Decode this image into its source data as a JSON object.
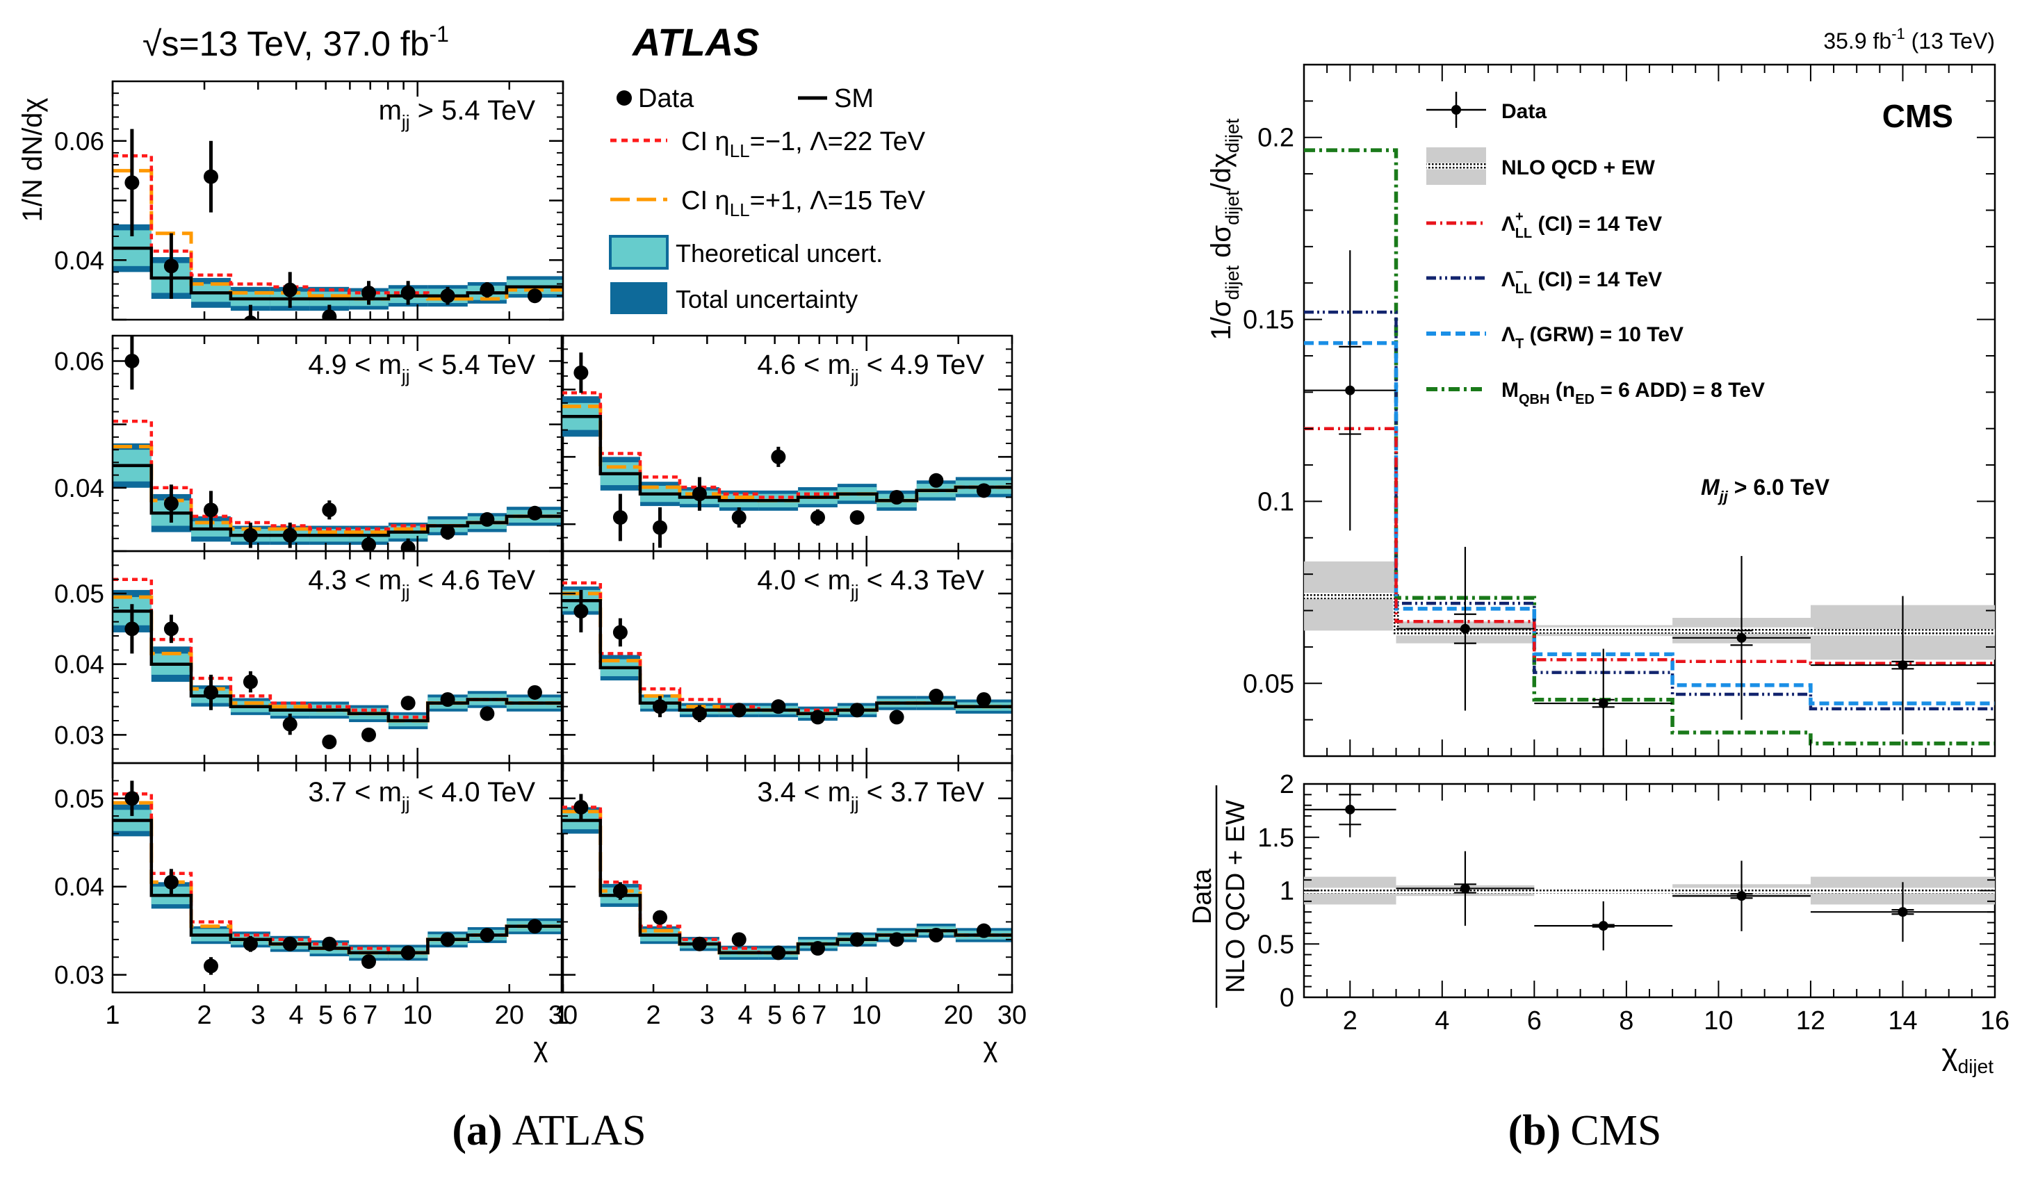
{
  "figure": {
    "caption_a_letter": "(a)",
    "caption_a_text": "ATLAS",
    "caption_b_letter": "(b)",
    "caption_b_text": "CMS"
  },
  "atlas": {
    "header": "√s=13 TeV, 37.0 fb",
    "header_sup": "-1",
    "brand": "ATLAS",
    "ylabel": "1/N dN/dχ",
    "xlabel": "χ",
    "legend": {
      "data": "Data",
      "sm": "SM",
      "ci_neg": "CI η",
      "ci_neg_sub": "LL",
      "ci_neg_rest": "=−1, Λ=22 TeV",
      "ci_pos": "CI η",
      "ci_pos_sub": "LL",
      "ci_pos_rest": "=+1, Λ=15 TeV",
      "theory": "Theoretical uncert.",
      "total": "Total uncertainty"
    },
    "colors": {
      "ci_neg": "#ff1a1a",
      "ci_pos": "#ff9900",
      "theory": "#66cccc",
      "total": "#0e6a9a",
      "sm": "#000000"
    },
    "x_ticks": [
      "1",
      "2",
      "3",
      "4",
      "5",
      "6",
      "7",
      "10",
      "20",
      "30"
    ],
    "x_tick_values": [
      1,
      2,
      3,
      4,
      5,
      6,
      7,
      10,
      20,
      30
    ],
    "bin_edges": [
      1,
      1.34,
      1.81,
      2.44,
      3.29,
      4.43,
      5.96,
      8.03,
      10.8,
      14.6,
      19.6,
      30
    ],
    "panels": [
      {
        "label_pre": "m",
        "label_sub": "jj",
        "label_post": " > 5.4 TeV",
        "ylim": [
          0.03,
          0.07
        ],
        "yticks": [
          0.04,
          0.06
        ],
        "ytick_labels": [
          "0.04",
          "0.06"
        ],
        "sm": [
          0.042,
          0.037,
          0.0345,
          0.0335,
          0.0335,
          0.0335,
          0.0335,
          0.034,
          0.034,
          0.0345,
          0.0355
        ],
        "total_half": [
          0.004,
          0.0035,
          0.0025,
          0.002,
          0.002,
          0.002,
          0.0018,
          0.0018,
          0.0018,
          0.0018,
          0.0018
        ],
        "theory_half": [
          0.003,
          0.0025,
          0.0015,
          0.0012,
          0.0012,
          0.0012,
          0.0012,
          0.0012,
          0.0012,
          0.0012,
          0.0012
        ],
        "ci_neg": [
          0.0575,
          0.0415,
          0.0375,
          0.036,
          0.0355,
          0.035,
          0.0345,
          0.0345,
          0.034,
          0.0345,
          0.0355
        ],
        "ci_pos": [
          0.055,
          0.0445,
          0.036,
          0.0345,
          0.0345,
          0.034,
          0.0335,
          0.034,
          0.0335,
          0.0335,
          0.035
        ],
        "data": [
          0.053,
          0.039,
          0.054,
          0.0295,
          0.035,
          0.0305,
          0.0345,
          0.0345,
          0.034,
          0.035,
          0.034
        ],
        "err": [
          0.009,
          0.0055,
          0.006,
          0.003,
          0.003,
          0.002,
          0.002,
          0.002,
          0.0015,
          0.0013,
          0.001
        ]
      },
      {
        "label_pre": "4.9 < m",
        "label_sub": "jj",
        "label_post": " < 5.4 TeV",
        "ylim": [
          0.03,
          0.064
        ],
        "yticks": [
          0.04,
          0.06
        ],
        "ytick_labels": [
          "0.04",
          "0.06"
        ],
        "sm": [
          0.0435,
          0.036,
          0.0335,
          0.0325,
          0.0325,
          0.0325,
          0.0325,
          0.033,
          0.034,
          0.0345,
          0.0355
        ],
        "total_half": [
          0.0035,
          0.003,
          0.002,
          0.0015,
          0.0015,
          0.0015,
          0.0015,
          0.0015,
          0.0015,
          0.0015,
          0.0015
        ],
        "theory_half": [
          0.0025,
          0.002,
          0.0012,
          0.001,
          0.001,
          0.001,
          0.001,
          0.001,
          0.001,
          0.001,
          0.001
        ],
        "ci_neg": [
          0.0505,
          0.04,
          0.0355,
          0.0345,
          0.034,
          0.0335,
          0.0335,
          0.034,
          0.034,
          0.0345,
          0.0355
        ],
        "ci_pos": [
          0.0465,
          0.038,
          0.0345,
          0.0335,
          0.0335,
          0.033,
          0.033,
          0.0335,
          0.034,
          0.0345,
          0.0355
        ],
        "data": [
          0.06,
          0.0375,
          0.0365,
          0.0325,
          0.0325,
          0.0365,
          0.031,
          0.0305,
          0.033,
          0.035,
          0.036
        ],
        "err": [
          0.0045,
          0.003,
          0.003,
          0.002,
          0.002,
          0.0015,
          0.0015,
          0.0015,
          0.0012,
          0.001,
          0.001
        ]
      },
      {
        "label_pre": "4.6 < m",
        "label_sub": "jj",
        "label_post": " < 4.9 TeV",
        "ylim": [
          0.026,
          0.058
        ],
        "yticks": [],
        "ytick_labels": [],
        "sm": [
          0.046,
          0.0375,
          0.0345,
          0.034,
          0.0335,
          0.0335,
          0.034,
          0.0345,
          0.0335,
          0.035,
          0.0355
        ],
        "total_half": [
          0.003,
          0.0025,
          0.0018,
          0.0015,
          0.0015,
          0.0015,
          0.0015,
          0.0015,
          0.0015,
          0.0015,
          0.0015
        ],
        "theory_half": [
          0.002,
          0.0017,
          0.0012,
          0.001,
          0.001,
          0.001,
          0.001,
          0.001,
          0.001,
          0.001,
          0.001
        ],
        "ci_neg": [
          0.0495,
          0.0405,
          0.037,
          0.0355,
          0.0345,
          0.034,
          0.0345,
          0.0345,
          0.0335,
          0.035,
          0.0355
        ],
        "ci_pos": [
          0.0475,
          0.0385,
          0.0355,
          0.0345,
          0.034,
          0.0335,
          0.034,
          0.0345,
          0.0335,
          0.035,
          0.0355
        ],
        "data": [
          0.0525,
          0.031,
          0.0295,
          0.0345,
          0.031,
          0.04,
          0.031,
          0.031,
          0.034,
          0.0365,
          0.035
        ],
        "err": [
          0.003,
          0.0035,
          0.003,
          0.0025,
          0.0015,
          0.0015,
          0.0012,
          0.001,
          0.001,
          0.0008,
          0.0008
        ]
      },
      {
        "label_pre": "4.3 < m",
        "label_sub": "jj",
        "label_post": " < 4.6 TeV",
        "ylim": [
          0.026,
          0.056
        ],
        "yticks": [
          0.03,
          0.04,
          0.05
        ],
        "ytick_labels": [
          "0.03",
          "0.04",
          "0.05"
        ],
        "sm": [
          0.0475,
          0.04,
          0.0355,
          0.034,
          0.0335,
          0.0335,
          0.033,
          0.032,
          0.0345,
          0.035,
          0.0345
        ],
        "total_half": [
          0.003,
          0.0025,
          0.0015,
          0.0012,
          0.0012,
          0.0012,
          0.0012,
          0.0012,
          0.0012,
          0.0012,
          0.0012
        ],
        "theory_half": [
          0.002,
          0.0015,
          0.001,
          0.0008,
          0.0008,
          0.0008,
          0.0008,
          0.0008,
          0.0008,
          0.0008,
          0.0008
        ],
        "ci_neg": [
          0.052,
          0.0435,
          0.038,
          0.0355,
          0.0345,
          0.034,
          0.0335,
          0.0325,
          0.0345,
          0.035,
          0.0345
        ],
        "ci_pos": [
          0.0495,
          0.0415,
          0.0365,
          0.0345,
          0.034,
          0.0335,
          0.033,
          0.032,
          0.0345,
          0.035,
          0.0345
        ],
        "data": [
          0.045,
          0.045,
          0.036,
          0.0375,
          0.0315,
          0.029,
          0.03,
          0.0345,
          0.035,
          0.033,
          0.036
        ],
        "err": [
          0.0035,
          0.002,
          0.0025,
          0.0015,
          0.0015,
          0.001,
          0.001,
          0.0008,
          0.0008,
          0.0006,
          0.0006
        ]
      },
      {
        "label_pre": "4.0 < m",
        "label_sub": "jj",
        "label_post": " < 4.3 TeV",
        "ylim": [
          0.026,
          0.056
        ],
        "yticks": [],
        "ytick_labels": [],
        "sm": [
          0.049,
          0.0395,
          0.0345,
          0.0335,
          0.0335,
          0.0335,
          0.033,
          0.0335,
          0.0345,
          0.0345,
          0.034
        ],
        "total_half": [
          0.002,
          0.0018,
          0.0012,
          0.001,
          0.001,
          0.001,
          0.001,
          0.001,
          0.001,
          0.001,
          0.001
        ],
        "theory_half": [
          0.0015,
          0.0012,
          0.0008,
          0.0006,
          0.0006,
          0.0006,
          0.0006,
          0.0006,
          0.0006,
          0.0006,
          0.0006
        ],
        "ci_neg": [
          0.0515,
          0.0415,
          0.0365,
          0.035,
          0.034,
          0.0335,
          0.0335,
          0.0335,
          0.0345,
          0.0345,
          0.034
        ],
        "ci_pos": [
          0.05,
          0.0405,
          0.0355,
          0.034,
          0.0335,
          0.0335,
          0.033,
          0.0335,
          0.0345,
          0.0345,
          0.034
        ],
        "data": [
          0.0475,
          0.0445,
          0.034,
          0.033,
          0.0335,
          0.034,
          0.0325,
          0.0335,
          0.0325,
          0.0355,
          0.035
        ],
        "err": [
          0.003,
          0.002,
          0.0015,
          0.0012,
          0.001,
          0.0008,
          0.0007,
          0.0006,
          0.0005,
          0.0005,
          0.0005
        ]
      },
      {
        "label_pre": "3.7 < m",
        "label_sub": "jj",
        "label_post": " < 4.0 TeV",
        "ylim": [
          0.028,
          0.054
        ],
        "yticks": [
          0.03,
          0.04,
          0.05
        ],
        "ytick_labels": [
          "0.03",
          "0.04",
          "0.05"
        ],
        "sm": [
          0.0475,
          0.039,
          0.0345,
          0.034,
          0.0335,
          0.033,
          0.0325,
          0.0325,
          0.034,
          0.0345,
          0.0355
        ],
        "total_half": [
          0.0018,
          0.0015,
          0.001,
          0.0009,
          0.0009,
          0.0009,
          0.0009,
          0.0009,
          0.0009,
          0.0009,
          0.0009
        ],
        "theory_half": [
          0.0012,
          0.001,
          0.0007,
          0.0006,
          0.0006,
          0.0006,
          0.0006,
          0.0006,
          0.0006,
          0.0006,
          0.0006
        ],
        "ci_neg": [
          0.0505,
          0.0415,
          0.036,
          0.0345,
          0.034,
          0.0335,
          0.033,
          0.0325,
          0.034,
          0.0345,
          0.0355
        ],
        "ci_pos": [
          0.0495,
          0.0405,
          0.0355,
          0.034,
          0.0335,
          0.033,
          0.0325,
          0.0325,
          0.034,
          0.0345,
          0.0355
        ],
        "data": [
          0.05,
          0.0405,
          0.031,
          0.0335,
          0.0335,
          0.0335,
          0.0315,
          0.0325,
          0.034,
          0.0345,
          0.0355
        ],
        "err": [
          0.002,
          0.0015,
          0.001,
          0.0009,
          0.0008,
          0.0007,
          0.0006,
          0.0005,
          0.0005,
          0.0004,
          0.0004
        ]
      },
      {
        "label_pre": "3.4 < m",
        "label_sub": "jj",
        "label_post": " < 3.7 TeV",
        "ylim": [
          0.028,
          0.054
        ],
        "yticks": [],
        "ytick_labels": [],
        "sm": [
          0.0475,
          0.039,
          0.0345,
          0.0335,
          0.0325,
          0.0325,
          0.0335,
          0.034,
          0.0345,
          0.035,
          0.0345
        ],
        "total_half": [
          0.0015,
          0.0013,
          0.001,
          0.0008,
          0.0008,
          0.0008,
          0.0008,
          0.0008,
          0.0008,
          0.0008,
          0.0008
        ],
        "theory_half": [
          0.001,
          0.0009,
          0.0007,
          0.0005,
          0.0005,
          0.0005,
          0.0005,
          0.0005,
          0.0005,
          0.0005,
          0.0005
        ],
        "ci_neg": [
          0.049,
          0.0405,
          0.0355,
          0.034,
          0.033,
          0.0325,
          0.0335,
          0.034,
          0.0345,
          0.035,
          0.0345
        ],
        "ci_pos": [
          0.0485,
          0.0395,
          0.035,
          0.0335,
          0.0325,
          0.0325,
          0.0335,
          0.034,
          0.0345,
          0.035,
          0.0345
        ],
        "data": [
          0.049,
          0.0395,
          0.0365,
          0.0335,
          0.034,
          0.0325,
          0.033,
          0.034,
          0.034,
          0.0345,
          0.035
        ],
        "err": [
          0.0015,
          0.001,
          0.0008,
          0.0007,
          0.0006,
          0.0005,
          0.0005,
          0.0004,
          0.0004,
          0.0004,
          0.0003
        ]
      }
    ]
  },
  "cms": {
    "lumi": "35.9 fb",
    "lumi_sup": "-1",
    "lumi_rest": " (13 TeV)",
    "brand": "CMS",
    "mass_cut": "M",
    "mass_cut_sub": "jj",
    "mass_cut_rest": " > 6.0 TeV",
    "ylabel_top": "1/σ",
    "ylabel_top_sub1": "dijet",
    "ylabel_top_mid": " dσ",
    "ylabel_top_sub2": "dijet",
    "ylabel_top_mid2": "/dχ",
    "ylabel_top_sub3": "dijet",
    "ylabel_bottom_num": "Data",
    "ylabel_bottom_den": "NLO QCD + EW",
    "xlabel": "χ",
    "xlabel_sub": "dijet",
    "legend": {
      "data": "Data",
      "nlo": "NLO QCD + EW",
      "ll_plus": "Λ",
      "ll_plus_sup": "+",
      "ll_plus_sub": "LL",
      "ll_plus_rest": " (CI) = 14 TeV",
      "ll_minus": "Λ",
      "ll_minus_sup": "−",
      "ll_minus_sub": "LL",
      "ll_minus_rest": " (CI) = 14 TeV",
      "grw": "Λ",
      "grw_sub": "T",
      "grw_rest": " (GRW) = 10 TeV",
      "qbh": "M",
      "qbh_sub": "QBH",
      "qbh_mid": " (n",
      "qbh_sub2": "ED",
      "qbh_rest": " = 6 ADD) = 8 TeV"
    },
    "colors": {
      "ll_plus": "#e8141c",
      "ll_minus": "#12246e",
      "grw": "#1a8fe6",
      "qbh": "#1a7a1a",
      "band": "#cccccc"
    },
    "chart_data": {
      "type": "line",
      "xlim": [
        1,
        16
      ],
      "ylim": [
        0.03,
        0.22
      ],
      "yticks": [
        0.05,
        0.1,
        0.15,
        0.2
      ],
      "ytick_labels": [
        "0.05",
        "0.1",
        "0.15",
        "0.2"
      ],
      "xticks": [
        2,
        4,
        6,
        8,
        10,
        12,
        14,
        16
      ],
      "xtick_labels": [
        "2",
        "4",
        "6",
        "8",
        "10",
        "12",
        "14",
        "16"
      ],
      "bin_edges": [
        1,
        3,
        6,
        9,
        12,
        16
      ],
      "bin_centers": [
        2,
        4.5,
        7.5,
        10.5,
        14
      ],
      "nlo": [
        0.074,
        0.064,
        0.0645,
        0.0645,
        0.064
      ],
      "nlo_band_half": [
        0.0095,
        0.003,
        0.0015,
        0.0035,
        0.0075
      ],
      "ll_plus": [
        0.12,
        0.067,
        0.0565,
        0.056,
        0.0555
      ],
      "ll_minus": [
        0.152,
        0.072,
        0.053,
        0.047,
        0.043
      ],
      "grw": [
        0.1435,
        0.0705,
        0.058,
        0.0495,
        0.0445
      ],
      "qbh": [
        0.1965,
        0.0735,
        0.0455,
        0.0365,
        0.0335
      ],
      "data": [
        0.1305,
        0.065,
        0.0445,
        0.0625,
        0.055
      ],
      "data_err": [
        0.0385,
        0.0225,
        0.015,
        0.0225,
        0.019
      ],
      "data_err_inner": [
        0.012,
        0.004,
        0.001,
        0.002,
        0.001
      ]
    },
    "ratio_data": {
      "type": "scatter",
      "ylim": [
        0,
        2
      ],
      "yticks": [
        0,
        0.5,
        1,
        1.5,
        2
      ],
      "ytick_labels": [
        "0",
        "0.5",
        "1",
        "1.5",
        "2"
      ],
      "band_half": [
        0.13,
        0.05,
        0.02,
        0.06,
        0.13
      ],
      "values": [
        1.76,
        1.02,
        0.67,
        0.95,
        0.8
      ],
      "err": [
        0.26,
        0.35,
        0.23,
        0.33,
        0.28
      ],
      "err_inner": [
        0.14,
        0.04,
        0.01,
        0.02,
        0.02
      ]
    }
  }
}
